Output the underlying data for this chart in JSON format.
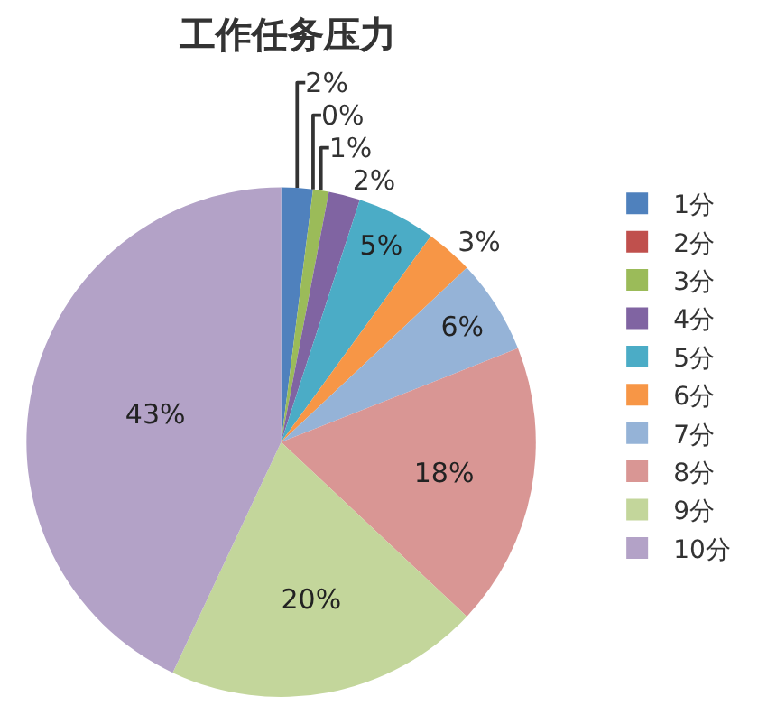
{
  "chart_data": {
    "type": "pie",
    "title": "工作任务压力",
    "categories": [
      "1分",
      "2分",
      "3分",
      "4分",
      "5分",
      "6分",
      "7分",
      "8分",
      "9分",
      "10分"
    ],
    "values": [
      2,
      0,
      1,
      2,
      5,
      3,
      6,
      18,
      20,
      43
    ],
    "value_labels": [
      "2%",
      "0%",
      "1%",
      "2%",
      "5%",
      "3%",
      "6%",
      "18%",
      "20%",
      "43%"
    ],
    "colors": [
      "#4f81bd",
      "#c0504d",
      "#9bbb59",
      "#8064a2",
      "#4bacc6",
      "#f79646",
      "#95b3d7",
      "#d99694",
      "#c3d69b",
      "#b3a2c7"
    ],
    "legend": "right"
  }
}
